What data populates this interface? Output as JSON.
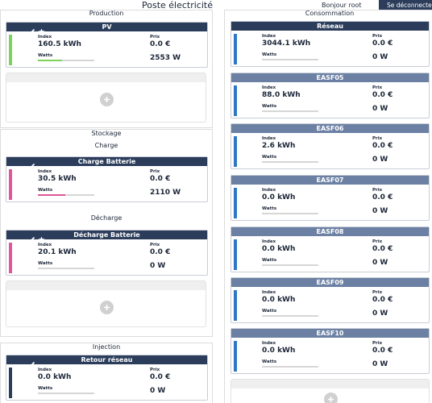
{
  "header": {
    "title": "Poste électricité",
    "greeting": "Bonjour root",
    "logout": "Se déconnecter"
  },
  "labels": {
    "index": "Index",
    "price": "Prix",
    "watts": "Watts"
  },
  "production": {
    "title": "Production",
    "cards": [
      {
        "name": "PV",
        "index": "160.5 kWh",
        "price": "0.0 €",
        "watts": "2553 W"
      }
    ]
  },
  "storage": {
    "title": "Stockage",
    "charge": {
      "title": "Charge",
      "cards": [
        {
          "name": "Charge Batterie",
          "index": "30.5 kWh",
          "price": "0.0 €",
          "watts": "2110 W"
        }
      ]
    },
    "discharge": {
      "title": "Décharge",
      "cards": [
        {
          "name": "Décharge Batterie",
          "index": "20.1 kWh",
          "price": "0.0 €",
          "watts": "0 W"
        }
      ]
    }
  },
  "injection": {
    "title": "Injection",
    "cards": [
      {
        "name": "Retour réseau",
        "index": "0.0 kWh",
        "price": "0.0 €",
        "watts": "0 W"
      }
    ]
  },
  "consumption": {
    "title": "Consommation",
    "cards": [
      {
        "name": "Réseau",
        "index": "3044.1 kWh",
        "price": "0.0 €",
        "watts": "0 W"
      },
      {
        "name": "EASF05",
        "index": "88.0 kWh",
        "price": "0.0 €",
        "watts": "0 W"
      },
      {
        "name": "EASF06",
        "index": "2.6 kWh",
        "price": "0.0 €",
        "watts": "0 W"
      },
      {
        "name": "EASF07",
        "index": "0.0 kWh",
        "price": "0.0 €",
        "watts": "0 W"
      },
      {
        "name": "EASF08",
        "index": "0.0 kWh",
        "price": "0.0 €",
        "watts": "0 W"
      },
      {
        "name": "EASF09",
        "index": "0.0 kWh",
        "price": "0.0 €",
        "watts": "0 W"
      },
      {
        "name": "EASF10",
        "index": "0.0 kWh",
        "price": "0.0 €",
        "watts": "0 W"
      }
    ]
  }
}
